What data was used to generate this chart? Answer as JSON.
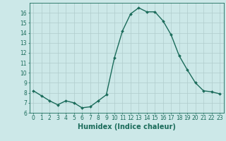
{
  "x": [
    0,
    1,
    2,
    3,
    4,
    5,
    6,
    7,
    8,
    9,
    10,
    11,
    12,
    13,
    14,
    15,
    16,
    17,
    18,
    19,
    20,
    21,
    22,
    23
  ],
  "y": [
    8.2,
    7.7,
    7.2,
    6.8,
    7.2,
    7.0,
    6.5,
    6.6,
    7.2,
    7.8,
    11.5,
    14.2,
    15.9,
    16.5,
    16.1,
    16.1,
    15.2,
    13.8,
    11.7,
    10.3,
    9.0,
    8.2,
    8.1,
    7.9
  ],
  "line_color": "#1a6b5a",
  "marker": "D",
  "marker_size": 2.0,
  "bg_color": "#cce8e8",
  "grid_color": "#b0cccc",
  "xlabel": "Humidex (Indice chaleur)",
  "xlim": [
    -0.5,
    23.5
  ],
  "ylim": [
    6,
    17
  ],
  "yticks": [
    6,
    7,
    8,
    9,
    10,
    11,
    12,
    13,
    14,
    15,
    16
  ],
  "xticks": [
    0,
    1,
    2,
    3,
    4,
    5,
    6,
    7,
    8,
    9,
    10,
    11,
    12,
    13,
    14,
    15,
    16,
    17,
    18,
    19,
    20,
    21,
    22,
    23
  ],
  "tick_label_size": 5.5,
  "xlabel_size": 7,
  "line_width": 1.0
}
